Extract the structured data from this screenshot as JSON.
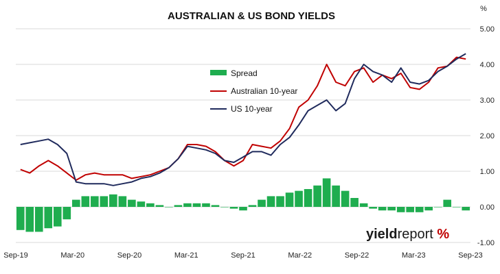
{
  "chart_data": {
    "type": "line",
    "title": "AUSTRALIAN & US BOND YIELDS",
    "unit_label": "%",
    "x_ticks": [
      "Sep-19",
      "Mar-20",
      "Sep-20",
      "Mar-21",
      "Sep-21",
      "Mar-22",
      "Sep-22",
      "Mar-23",
      "Sep-23"
    ],
    "ylim": [
      -1.0,
      5.0
    ],
    "y_ticks": [
      "5.00",
      "4.00",
      "3.00",
      "2.00",
      "1.00",
      "0.00",
      "-1.00"
    ],
    "y_tick_values": [
      5,
      4,
      3,
      2,
      1,
      0,
      -1
    ],
    "legend_position": "upper-middle",
    "grid": "horizontal",
    "colors": {
      "spread": "#1fad4f",
      "australian": "#c00000",
      "us": "#1f2a5c",
      "grid": "#d9d9d9"
    },
    "x": [
      "Sep-19",
      "Oct-19",
      "Nov-19",
      "Dec-19",
      "Jan-20",
      "Feb-20",
      "Mar-20",
      "Apr-20",
      "May-20",
      "Jun-20",
      "Jul-20",
      "Aug-20",
      "Sep-20",
      "Oct-20",
      "Nov-20",
      "Dec-20",
      "Jan-21",
      "Feb-21",
      "Mar-21",
      "Apr-21",
      "May-21",
      "Jun-21",
      "Jul-21",
      "Aug-21",
      "Sep-21",
      "Oct-21",
      "Nov-21",
      "Dec-21",
      "Jan-22",
      "Feb-22",
      "Mar-22",
      "Apr-22",
      "May-22",
      "Jun-22",
      "Jul-22",
      "Aug-22",
      "Sep-22",
      "Oct-22",
      "Nov-22",
      "Dec-22",
      "Jan-23",
      "Feb-23",
      "Mar-23",
      "Apr-23",
      "May-23",
      "Jun-23",
      "Jul-23",
      "Aug-23",
      "Sep-23"
    ],
    "series": [
      {
        "name": "Spread",
        "type": "bar",
        "values": [
          -0.65,
          -0.7,
          -0.7,
          -0.6,
          -0.55,
          -0.35,
          0.2,
          0.3,
          0.3,
          0.3,
          0.35,
          0.3,
          0.2,
          0.15,
          0.1,
          0.05,
          0.0,
          0.05,
          0.1,
          0.1,
          0.1,
          0.05,
          0.0,
          -0.05,
          -0.1,
          0.05,
          0.2,
          0.3,
          0.3,
          0.4,
          0.45,
          0.5,
          0.6,
          0.8,
          0.6,
          0.45,
          0.25,
          0.1,
          -0.05,
          -0.1,
          -0.1,
          -0.15,
          -0.15,
          -0.15,
          -0.1,
          0.0,
          0.2,
          0.0,
          -0.1
        ]
      },
      {
        "name": "Australian 10-year",
        "type": "line",
        "values": [
          1.05,
          0.95,
          1.15,
          1.3,
          1.15,
          0.95,
          0.75,
          0.9,
          0.95,
          0.9,
          0.9,
          0.9,
          0.8,
          0.85,
          0.9,
          1.0,
          1.1,
          1.35,
          1.75,
          1.75,
          1.7,
          1.55,
          1.3,
          1.15,
          1.3,
          1.75,
          1.7,
          1.65,
          1.85,
          2.2,
          2.8,
          3.0,
          3.4,
          4.0,
          3.5,
          3.4,
          3.8,
          3.9,
          3.5,
          3.7,
          3.6,
          3.75,
          3.35,
          3.3,
          3.5,
          3.9,
          3.95,
          4.2,
          4.15
        ]
      },
      {
        "name": "US 10-year",
        "type": "line",
        "values": [
          1.75,
          1.8,
          1.85,
          1.9,
          1.75,
          1.5,
          0.7,
          0.65,
          0.65,
          0.65,
          0.6,
          0.65,
          0.7,
          0.8,
          0.85,
          0.95,
          1.1,
          1.35,
          1.7,
          1.65,
          1.6,
          1.5,
          1.3,
          1.25,
          1.4,
          1.55,
          1.55,
          1.45,
          1.75,
          1.95,
          2.3,
          2.7,
          2.85,
          3.0,
          2.7,
          2.9,
          3.6,
          4.0,
          3.8,
          3.7,
          3.5,
          3.9,
          3.5,
          3.45,
          3.55,
          3.8,
          3.95,
          4.15,
          4.3
        ]
      }
    ]
  },
  "legend": [
    {
      "label": "Spread",
      "key": "spread"
    },
    {
      "label": "Australian 10-year",
      "key": "australian"
    },
    {
      "label": "US 10-year",
      "key": "us"
    }
  ],
  "logo": {
    "part1": "yield",
    "part2": "report",
    "part3": " %"
  }
}
